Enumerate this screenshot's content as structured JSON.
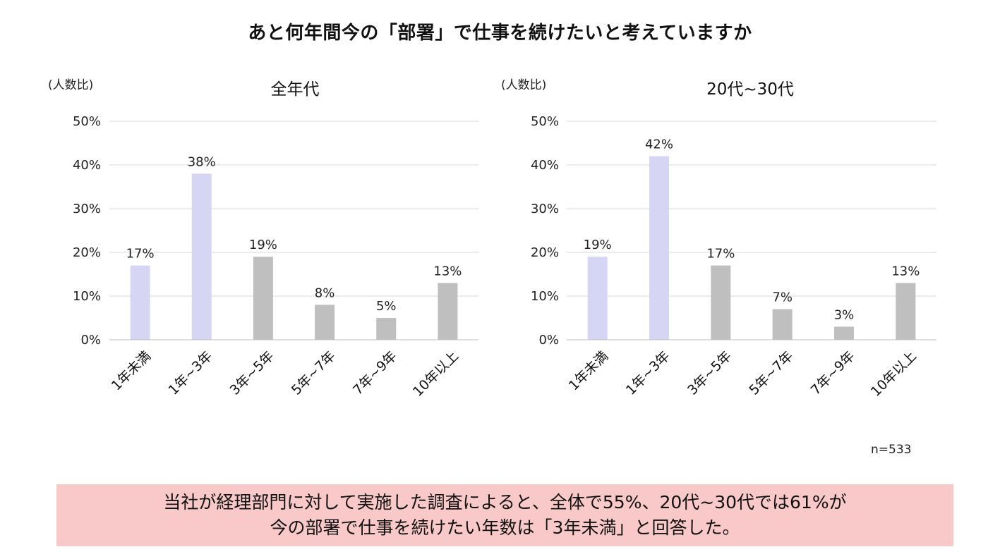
{
  "page": {
    "title": "あと何年間今の「部署」で仕事を続けたいと考えていますか",
    "note": "n=533",
    "summary_lines": [
      "当社が経理部門に対して実施した調査によると、全体で55%、20代~30代では61%が",
      "今の部署で仕事を続けたい年数は「3年未満」と回答した。"
    ]
  },
  "colors": {
    "highlight_bar": "#d6d5f4",
    "normal_bar": "#bfbfbf",
    "grid": "#d9d9d9",
    "summary_bg": "#f9c9c9"
  },
  "chart_data": [
    {
      "type": "bar",
      "title": "全年代",
      "ylabel": "(人数比)",
      "categories": [
        "1年未満",
        "1年~3年",
        "3年~5年",
        "5年~7年",
        "7年~9年",
        "10年以上"
      ],
      "values": [
        17,
        38,
        19,
        8,
        5,
        13
      ],
      "value_labels": [
        "17%",
        "38%",
        "19%",
        "8%",
        "5%",
        "13%"
      ],
      "highlight": [
        true,
        true,
        false,
        false,
        false,
        false
      ],
      "ylim": [
        0,
        50
      ],
      "yticks": [
        0,
        10,
        20,
        30,
        40,
        50
      ],
      "ytick_labels": [
        "0%",
        "10%",
        "20%",
        "30%",
        "40%",
        "50%"
      ],
      "grid": true
    },
    {
      "type": "bar",
      "title": "20代~30代",
      "ylabel": "(人数比)",
      "categories": [
        "1年未満",
        "1年~3年",
        "3年~5年",
        "5年~7年",
        "7年~9年",
        "10年以上"
      ],
      "values": [
        19,
        42,
        17,
        7,
        3,
        13
      ],
      "value_labels": [
        "19%",
        "42%",
        "17%",
        "7%",
        "3%",
        "13%"
      ],
      "highlight": [
        true,
        true,
        false,
        false,
        false,
        false
      ],
      "ylim": [
        0,
        50
      ],
      "yticks": [
        0,
        10,
        20,
        30,
        40,
        50
      ],
      "ytick_labels": [
        "0%",
        "10%",
        "20%",
        "30%",
        "40%",
        "50%"
      ],
      "grid": true
    }
  ]
}
